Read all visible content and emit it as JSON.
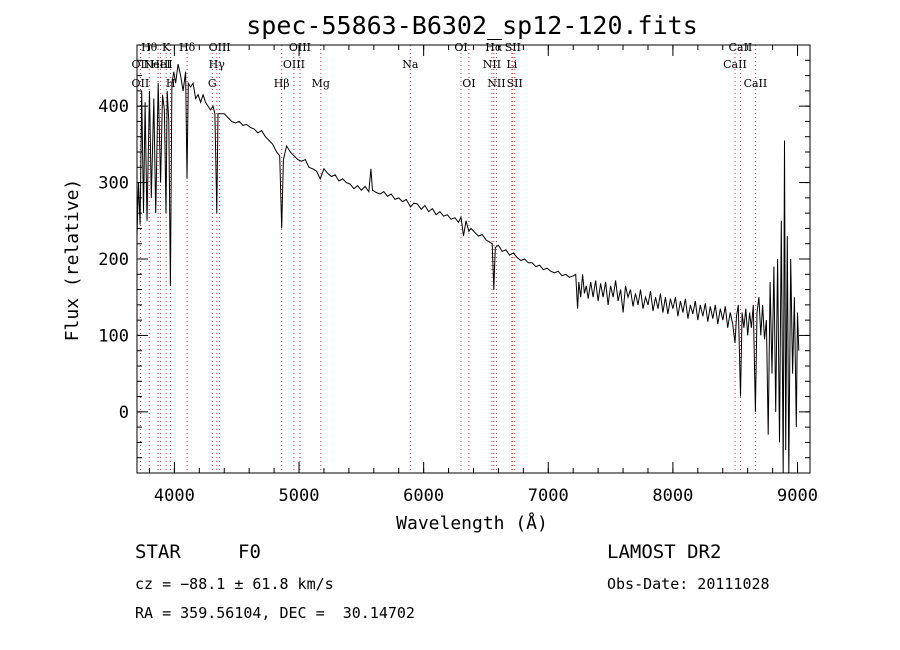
{
  "chart_data": {
    "type": "line",
    "title": "spec-55863-B6302_sp12-120.fits",
    "xlabel": "Wavelength (Å)",
    "ylabel": "Flux (relative)",
    "xlim": [
      3700,
      9100
    ],
    "ylim": [
      -80,
      480
    ],
    "xticks": [
      4000,
      5000,
      6000,
      7000,
      8000,
      9000
    ],
    "yticks": [
      0,
      100,
      200,
      300,
      400
    ],
    "x_minor_step": 200,
    "y_minor_step": 20,
    "grid": false,
    "series": [
      {
        "points": [
          [
            3700,
            230
          ],
          [
            3712,
            300
          ],
          [
            3725,
            245
          ],
          [
            3738,
            420
          ],
          [
            3752,
            260
          ],
          [
            3765,
            405
          ],
          [
            3780,
            250
          ],
          [
            3800,
            420
          ],
          [
            3815,
            280
          ],
          [
            3835,
            410
          ],
          [
            3850,
            260
          ],
          [
            3870,
            430
          ],
          [
            3889,
            300
          ],
          [
            3905,
            415
          ],
          [
            3920,
            395
          ],
          [
            3933,
            260
          ],
          [
            3942,
            420
          ],
          [
            3955,
            380
          ],
          [
            3968,
            165
          ],
          [
            3980,
            430
          ],
          [
            3995,
            445
          ],
          [
            4010,
            430
          ],
          [
            4030,
            455
          ],
          [
            4050,
            440
          ],
          [
            4070,
            420
          ],
          [
            4090,
            445
          ],
          [
            4101,
            305
          ],
          [
            4112,
            430
          ],
          [
            4130,
            425
          ],
          [
            4150,
            430
          ],
          [
            4170,
            410
          ],
          [
            4190,
            415
          ],
          [
            4210,
            405
          ],
          [
            4230,
            415
          ],
          [
            4250,
            405
          ],
          [
            4270,
            400
          ],
          [
            4290,
            395
          ],
          [
            4310,
            400
          ],
          [
            4325,
            390
          ],
          [
            4340,
            260
          ],
          [
            4350,
            390
          ],
          [
            4370,
            390
          ],
          [
            4400,
            390
          ],
          [
            4430,
            385
          ],
          [
            4460,
            380
          ],
          [
            4490,
            378
          ],
          [
            4520,
            380
          ],
          [
            4550,
            375
          ],
          [
            4580,
            376
          ],
          [
            4610,
            372
          ],
          [
            4640,
            370
          ],
          [
            4670,
            365
          ],
          [
            4700,
            368
          ],
          [
            4730,
            360
          ],
          [
            4760,
            355
          ],
          [
            4790,
            350
          ],
          [
            4820,
            340
          ],
          [
            4845,
            335
          ],
          [
            4861,
            240
          ],
          [
            4875,
            330
          ],
          [
            4900,
            348
          ],
          [
            4930,
            340
          ],
          [
            4960,
            335
          ],
          [
            4990,
            330
          ],
          [
            5020,
            328
          ],
          [
            5050,
            330
          ],
          [
            5080,
            320
          ],
          [
            5110,
            318
          ],
          [
            5140,
            315
          ],
          [
            5170,
            305
          ],
          [
            5200,
            318
          ],
          [
            5230,
            312
          ],
          [
            5260,
            308
          ],
          [
            5290,
            310
          ],
          [
            5320,
            302
          ],
          [
            5350,
            305
          ],
          [
            5380,
            300
          ],
          [
            5410,
            298
          ],
          [
            5440,
            292
          ],
          [
            5470,
            296
          ],
          [
            5500,
            290
          ],
          [
            5530,
            295
          ],
          [
            5560,
            288
          ],
          [
            5577,
            318
          ],
          [
            5590,
            290
          ],
          [
            5620,
            287
          ],
          [
            5650,
            285
          ],
          [
            5680,
            288
          ],
          [
            5710,
            282
          ],
          [
            5740,
            285
          ],
          [
            5770,
            278
          ],
          [
            5800,
            280
          ],
          [
            5830,
            275
          ],
          [
            5860,
            278
          ],
          [
            5895,
            268
          ],
          [
            5920,
            273
          ],
          [
            5950,
            272
          ],
          [
            5980,
            265
          ],
          [
            6010,
            270
          ],
          [
            6040,
            262
          ],
          [
            6070,
            266
          ],
          [
            6100,
            258
          ],
          [
            6130,
            262
          ],
          [
            6160,
            256
          ],
          [
            6190,
            258
          ],
          [
            6220,
            252
          ],
          [
            6250,
            254
          ],
          [
            6280,
            248
          ],
          [
            6300,
            255
          ],
          [
            6320,
            230
          ],
          [
            6340,
            250
          ],
          [
            6363,
            236
          ],
          [
            6380,
            240
          ],
          [
            6410,
            235
          ],
          [
            6440,
            230
          ],
          [
            6470,
            232
          ],
          [
            6500,
            225
          ],
          [
            6530,
            222
          ],
          [
            6550,
            220
          ],
          [
            6563,
            160
          ],
          [
            6575,
            215
          ],
          [
            6600,
            218
          ],
          [
            6630,
            210
          ],
          [
            6660,
            212
          ],
          [
            6690,
            205
          ],
          [
            6720,
            208
          ],
          [
            6750,
            202
          ],
          [
            6780,
            198
          ],
          [
            6810,
            200
          ],
          [
            6840,
            195
          ],
          [
            6870,
            195
          ],
          [
            6900,
            190
          ],
          [
            6930,
            192
          ],
          [
            6960,
            186
          ],
          [
            6990,
            188
          ],
          [
            7020,
            184
          ],
          [
            7050,
            182
          ],
          [
            7080,
            184
          ],
          [
            7110,
            178
          ],
          [
            7140,
            180
          ],
          [
            7170,
            176
          ],
          [
            7200,
            178
          ],
          [
            7220,
            180
          ],
          [
            7235,
            135
          ],
          [
            7245,
            170
          ],
          [
            7260,
            150
          ],
          [
            7275,
            180
          ],
          [
            7290,
            155
          ],
          [
            7305,
            165
          ],
          [
            7320,
            148
          ],
          [
            7340,
            170
          ],
          [
            7360,
            150
          ],
          [
            7380,
            172
          ],
          [
            7400,
            145
          ],
          [
            7420,
            168
          ],
          [
            7440,
            150
          ],
          [
            7460,
            170
          ],
          [
            7480,
            140
          ],
          [
            7500,
            165
          ],
          [
            7520,
            150
          ],
          [
            7540,
            172
          ],
          [
            7560,
            145
          ],
          [
            7580,
            160
          ],
          [
            7600,
            130
          ],
          [
            7620,
            165
          ],
          [
            7640,
            150
          ],
          [
            7660,
            160
          ],
          [
            7680,
            138
          ],
          [
            7700,
            155
          ],
          [
            7720,
            140
          ],
          [
            7740,
            160
          ],
          [
            7760,
            135
          ],
          [
            7780,
            150
          ],
          [
            7800,
            140
          ],
          [
            7820,
            158
          ],
          [
            7840,
            132
          ],
          [
            7860,
            150
          ],
          [
            7880,
            135
          ],
          [
            7900,
            155
          ],
          [
            7920,
            130
          ],
          [
            7940,
            150
          ],
          [
            7960,
            128
          ],
          [
            7980,
            148
          ],
          [
            8000,
            135
          ],
          [
            8020,
            150
          ],
          [
            8040,
            125
          ],
          [
            8060,
            145
          ],
          [
            8080,
            130
          ],
          [
            8100,
            148
          ],
          [
            8120,
            122
          ],
          [
            8140,
            140
          ],
          [
            8160,
            128
          ],
          [
            8180,
            145
          ],
          [
            8200,
            120
          ],
          [
            8220,
            140
          ],
          [
            8240,
            125
          ],
          [
            8260,
            142
          ],
          [
            8280,
            118
          ],
          [
            8300,
            138
          ],
          [
            8320,
            122
          ],
          [
            8340,
            140
          ],
          [
            8360,
            115
          ],
          [
            8380,
            135
          ],
          [
            8400,
            120
          ],
          [
            8420,
            138
          ],
          [
            8440,
            110
          ],
          [
            8460,
            130
          ],
          [
            8480,
            115
          ],
          [
            8498,
            90
          ],
          [
            8510,
            125
          ],
          [
            8525,
            140
          ],
          [
            8542,
            20
          ],
          [
            8555,
            130
          ],
          [
            8570,
            110
          ],
          [
            8585,
            135
          ],
          [
            8600,
            100
          ],
          [
            8615,
            130
          ],
          [
            8630,
            110
          ],
          [
            8645,
            140
          ],
          [
            8662,
            0
          ],
          [
            8675,
            130
          ],
          [
            8690,
            150
          ],
          [
            8705,
            100
          ],
          [
            8720,
            140
          ],
          [
            8735,
            95
          ],
          [
            8750,
            120
          ],
          [
            8765,
            -30
          ],
          [
            8780,
            170
          ],
          [
            8795,
            50
          ],
          [
            8810,
            190
          ],
          [
            8825,
            0
          ],
          [
            8840,
            200
          ],
          [
            8855,
            -40
          ],
          [
            8870,
            250
          ],
          [
            8885,
            -80
          ],
          [
            8895,
            355
          ],
          [
            8905,
            -50
          ],
          [
            8918,
            230
          ],
          [
            8930,
            -80
          ],
          [
            8945,
            200
          ],
          [
            8960,
            50
          ],
          [
            8975,
            150
          ],
          [
            8990,
            -20
          ],
          [
            9000,
            130
          ],
          [
            9010,
            80
          ]
        ]
      }
    ],
    "line_labels": [
      {
        "label": "Hθ",
        "x": 3798,
        "y": 472,
        "lines": [
          3798
        ]
      },
      {
        "label": "OII",
        "x": 3727,
        "y": 450,
        "lines": [
          3727
        ]
      },
      {
        "label": "OII",
        "x": 3727,
        "y": 425,
        "lines": [
          3729
        ]
      },
      {
        "label": "K",
        "x": 3934,
        "y": 472,
        "lines": [
          3934
        ]
      },
      {
        "label": "HeI",
        "x": 3889,
        "y": 450,
        "lines": [
          3889
        ]
      },
      {
        "label": "H",
        "x": 3970,
        "y": 425,
        "lines": [
          3970
        ]
      },
      {
        "label": "Hδ",
        "x": 4102,
        "y": 472,
        "lines": [
          4102
        ]
      },
      {
        "label": "NeIII",
        "x": 3869,
        "y": 450,
        "lines": [
          3869
        ]
      },
      {
        "label": "OIII",
        "x": 4363,
        "y": 472,
        "lines": [
          4363
        ]
      },
      {
        "label": "Hγ",
        "x": 4340,
        "y": 450,
        "lines": [
          4340
        ]
      },
      {
        "label": "G",
        "x": 4304,
        "y": 425,
        "lines": [
          4304
        ]
      },
      {
        "label": "OIII",
        "x": 5007,
        "y": 472,
        "lines": [
          5007
        ]
      },
      {
        "label": "OIII",
        "x": 4959,
        "y": 450,
        "lines": [
          4959
        ]
      },
      {
        "label": "Hβ",
        "x": 4861,
        "y": 425,
        "lines": [
          4861
        ]
      },
      {
        "label": "Mg",
        "x": 5175,
        "y": 425,
        "lines": [
          5175
        ]
      },
      {
        "label": "Na",
        "x": 5893,
        "y": 450,
        "lines": [
          5893
        ]
      },
      {
        "label": "OI",
        "x": 6300,
        "y": 472,
        "lines": [
          6300
        ]
      },
      {
        "label": "OI",
        "x": 6363,
        "y": 425,
        "lines": [
          6363
        ]
      },
      {
        "label": "Hα",
        "x": 6563,
        "y": 472,
        "lines": [
          6563
        ]
      },
      {
        "label": "SII",
        "x": 6716,
        "y": 472,
        "lines": [
          6716
        ]
      },
      {
        "label": "NII",
        "x": 6548,
        "y": 450,
        "lines": [
          6548
        ]
      },
      {
        "label": "Li",
        "x": 6708,
        "y": 450,
        "lines": [
          6708
        ]
      },
      {
        "label": "NII",
        "x": 6584,
        "y": 425,
        "lines": [
          6584
        ]
      },
      {
        "label": "SII",
        "x": 6731,
        "y": 425,
        "lines": [
          6731
        ]
      },
      {
        "label": "CaII",
        "x": 8542,
        "y": 472,
        "lines": [
          8542
        ]
      },
      {
        "label": "CaII",
        "x": 8498,
        "y": 450,
        "lines": [
          8498
        ]
      },
      {
        "label": "CaII",
        "x": 8662,
        "y": 425,
        "lines": [
          8662
        ]
      }
    ]
  },
  "info": {
    "object_class": "STAR",
    "subclass": "F0",
    "release": "LAMOST DR2",
    "cz": "cz = −88.1 ± 61.8 km/s",
    "obs_date": "Obs-Date: 20111028",
    "coords": "RA = 359.56104, DEC =  30.14702"
  }
}
